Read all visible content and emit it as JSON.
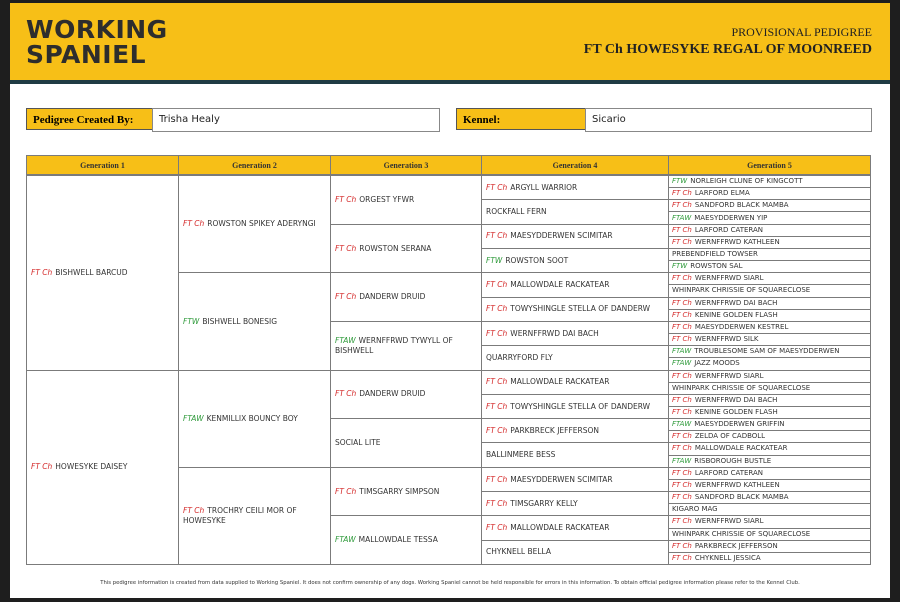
{
  "header": {
    "logo": [
      "WORKING",
      "SPANIEL"
    ],
    "title": "PROVISIONAL PEDIGREE",
    "dog": "FT Ch HOWESYKE REGAL OF MOONREED"
  },
  "fields": [
    {
      "label": "Pedigree Created By:",
      "value": "Trisha Healy"
    },
    {
      "label": "Kennel:",
      "value": "Sicario"
    }
  ],
  "title_colors": {
    "FT Ch": "#d42a2a",
    "FTW": "#2e9a3a",
    "FTAW": "#2e9a3a"
  },
  "table": {
    "headers": [
      "Generation 1",
      "Generation 2",
      "Generation 3",
      "Generation 4",
      "Generation 5"
    ],
    "generations": [
      [
        {
          "title": "FT Ch",
          "name": "BISHWELL BARCUD"
        },
        {
          "title": "FT Ch",
          "name": "HOWESYKE DAISEY"
        }
      ],
      [
        {
          "title": "FT Ch",
          "name": "ROWSTON SPIKEY ADERYNGI"
        },
        {
          "title": "FTW",
          "name": "BISHWELL BONESIG"
        },
        {
          "title": "FTAW",
          "name": "KENMILLIX BOUNCY BOY"
        },
        {
          "title": "FT Ch",
          "name": "TROCHRY CEILI MOR OF HOWESYKE"
        }
      ],
      [
        {
          "title": "FT Ch",
          "name": "ORGEST YFWR"
        },
        {
          "title": "FT Ch",
          "name": "ROWSTON SERANA"
        },
        {
          "title": "FT Ch",
          "name": "DANDERW DRUID"
        },
        {
          "title": "FTAW",
          "name": "WERNFFRWD TYWYLL OF BISHWELL"
        },
        {
          "title": "FT Ch",
          "name": "DANDERW DRUID"
        },
        {
          "name": "SOCIAL LITE"
        },
        {
          "title": "FT Ch",
          "name": "TIMSGARRY SIMPSON"
        },
        {
          "title": "FTAW",
          "name": "MALLOWDALE TESSA"
        }
      ],
      [
        {
          "title": "FT Ch",
          "name": "ARGYLL WARRIOR"
        },
        {
          "name": "ROCKFALL FERN"
        },
        {
          "title": "FT Ch",
          "name": "MAESYDDERWEN SCIMITAR"
        },
        {
          "title": "FTW",
          "name": "ROWSTON SOOT"
        },
        {
          "title": "FT Ch",
          "name": "MALLOWDALE RACKATEAR"
        },
        {
          "title": "FT Ch",
          "name": "TOWYSHINGLE STELLA OF DANDERW"
        },
        {
          "title": "FT Ch",
          "name": "WERNFFRWD DAI BACH"
        },
        {
          "name": "QUARRYFORD FLY"
        },
        {
          "title": "FT Ch",
          "name": "MALLOWDALE RACKATEAR"
        },
        {
          "title": "FT Ch",
          "name": "TOWYSHINGLE STELLA OF DANDERW"
        },
        {
          "title": "FT Ch",
          "name": "PARKBRECK JEFFERSON"
        },
        {
          "name": "BALLINMERE BESS"
        },
        {
          "title": "FT Ch",
          "name": "MAESYDDERWEN SCIMITAR"
        },
        {
          "title": "FT Ch",
          "name": "TIMSGARRY KELLY"
        },
        {
          "title": "FT Ch",
          "name": "MALLOWDALE RACKATEAR"
        },
        {
          "name": "CHYKNELL BELLA"
        }
      ],
      [
        {
          "title": "FTW",
          "name": "NORLEIGH CLUNE OF KINGCOTT"
        },
        {
          "title": "FT Ch",
          "name": "LARFORD ELMA"
        },
        {
          "title": "FT Ch",
          "name": "SANDFORD BLACK MAMBA"
        },
        {
          "title": "FTAW",
          "name": "MAESYDDERWEN YIP"
        },
        {
          "title": "FT Ch",
          "name": "LARFORD CATERAN"
        },
        {
          "title": "FT Ch",
          "name": "WERNFFRWD KATHLEEN"
        },
        {
          "name": "PREBENDFIELD TOWSER"
        },
        {
          "title": "FTW",
          "name": "ROWSTON SAL"
        },
        {
          "title": "FT Ch",
          "name": "WERNFFRWD SIARL"
        },
        {
          "name": "WHINPARK CHRISSIE OF SQUARECLOSE"
        },
        {
          "title": "FT Ch",
          "name": "WERNFFRWD DAI BACH"
        },
        {
          "title": "FT Ch",
          "name": "KENINE GOLDEN FLASH"
        },
        {
          "title": "FT Ch",
          "name": "MAESYDDERWEN KESTREL"
        },
        {
          "title": "FT Ch",
          "name": "WERNFFRWD SILK"
        },
        {
          "title": "FTAW",
          "name": "TROUBLESOME SAM OF MAESYDDERWEN"
        },
        {
          "title": "FTAW",
          "name": "JAZZ MOODS"
        },
        {
          "title": "FT Ch",
          "name": "WERNFFRWD SIARL"
        },
        {
          "name": "WHINPARK CHRISSIE OF SQUARECLOSE"
        },
        {
          "title": "FT Ch",
          "name": "WERNFFRWD DAI BACH"
        },
        {
          "title": "FT Ch",
          "name": "KENINE GOLDEN FLASH"
        },
        {
          "title": "FTAW",
          "name": "MAESYDDERWEN GRIFFIN"
        },
        {
          "title": "FT Ch",
          "name": "ZELDA OF CADBOLL"
        },
        {
          "title": "FT Ch",
          "name": "MALLOWDALE RACKATEAR"
        },
        {
          "title": "FTAW",
          "name": "RISBOROUGH BUSTLE"
        },
        {
          "title": "FT Ch",
          "name": "LARFORD CATERAN"
        },
        {
          "title": "FT Ch",
          "name": "WERNFFRWD KATHLEEN"
        },
        {
          "title": "FT Ch",
          "name": "SANDFORD BLACK MAMBA"
        },
        {
          "name": "KIGARO MAG"
        },
        {
          "title": "FT Ch",
          "name": "WERNFFRWD SIARL"
        },
        {
          "name": "WHINPARK CHRISSIE OF SQUARECLOSE"
        },
        {
          "title": "FT Ch",
          "name": "PARKBRECK JEFFERSON"
        },
        {
          "title": "FT Ch",
          "name": "CHYKNELL JESSICA"
        }
      ]
    ]
  },
  "footer": "This pedigree information is created from data supplied to Working Spaniel. It does not confirm ownership of any dogs. Working Spaniel cannot be held responsible for errors in this information. To obtain official pedigree information please refer to the Kennel Club."
}
